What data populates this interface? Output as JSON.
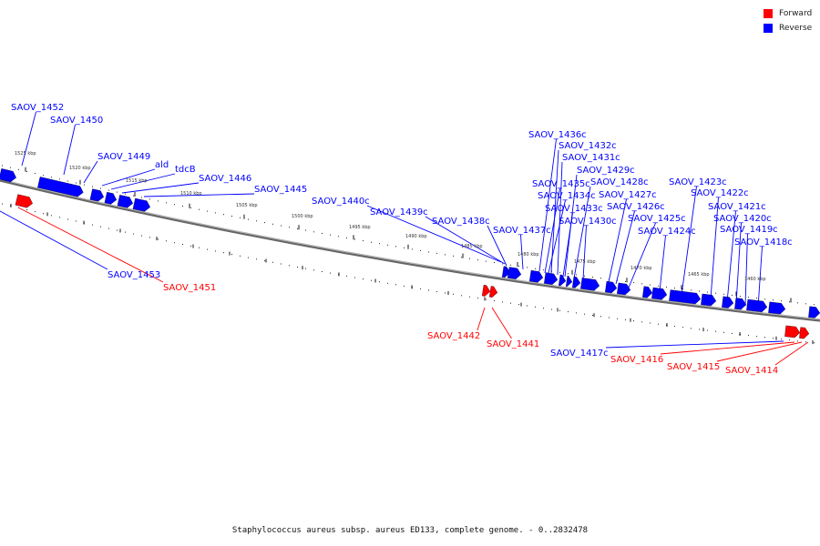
{
  "legend": {
    "forward": {
      "label": "Forward",
      "color": "#ff0000"
    },
    "reverse": {
      "label": "Reverse",
      "color": "#0000ff"
    }
  },
  "caption": "Staphylococcus aureus subsp. aureus ED133, complete genome. - 0..2832478",
  "colors": {
    "backbone": "#666666",
    "reverse": "#0000ff",
    "forward": "#ff0000",
    "tick": "#111111"
  },
  "kbp_ticks": [
    "1525 kbp",
    "1520 kbp",
    "1515 kbp",
    "1510 kbp",
    "1505 kbp",
    "1500 kbp",
    "1495 kbp",
    "1490 kbp",
    "1485 kbp",
    "1480 kbp",
    "1475 kbp",
    "1470 kbp",
    "1465 kbp",
    "1460 kbp"
  ],
  "reverse_labels": [
    "SAOV_1452",
    "SAOV_1450",
    "SAOV_1449",
    "ald",
    "tdcB",
    "SAOV_1446",
    "SAOV_1445",
    "SAOV_1440c",
    "SAOV_1439c",
    "SAOV_1438c",
    "SAOV_1437c",
    "SAOV_1436c",
    "SAOV_1432c",
    "SAOV_1431c",
    "SAOV_1429c",
    "SAOV_1435c",
    "SAOV_1428c",
    "SAOV_1434c",
    "SAOV_1427c",
    "SAOV_1433c",
    "SAOV_1426c",
    "SAOV_1430c",
    "SAOV_1425c",
    "SAOV_1424c",
    "SAOV_1423c",
    "SAOV_1422c",
    "SAOV_1421c",
    "SAOV_1420c",
    "SAOV_1419c",
    "SAOV_1418c",
    "SAOV_1453",
    "SAOV_1417c"
  ],
  "forward_labels": [
    "SAOV_1451",
    "SAOV_1442",
    "SAOV_1441",
    "SAOV_1416",
    "SAOV_1415",
    "SAOV_1414"
  ]
}
